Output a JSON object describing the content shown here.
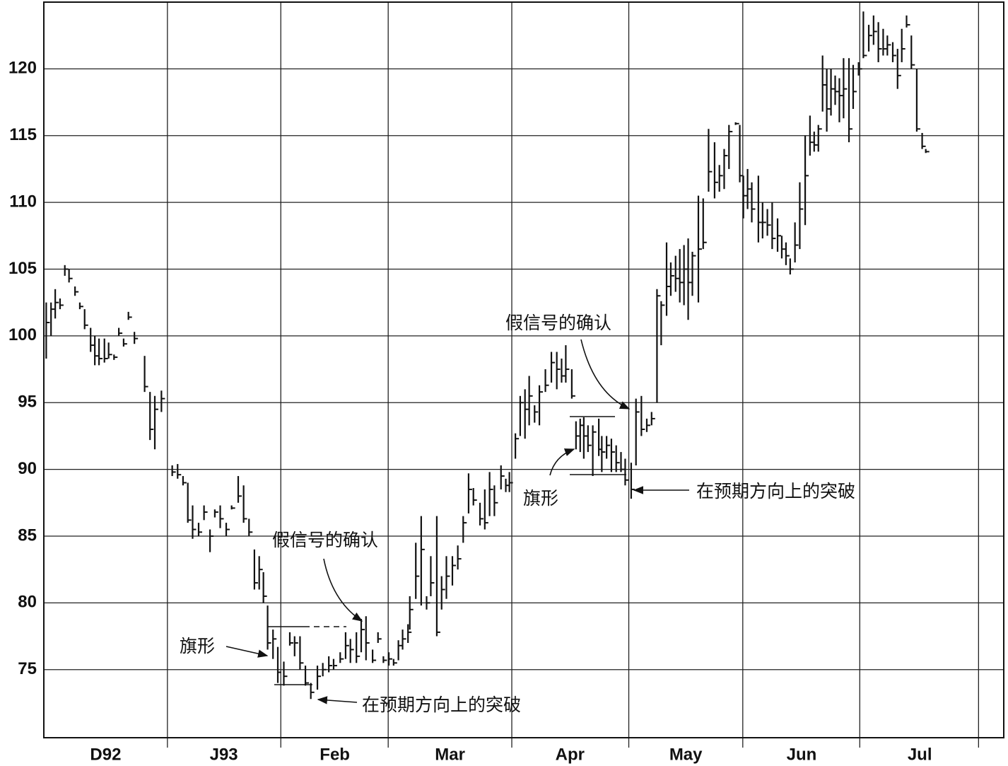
{
  "chart_data": {
    "type": "hlc",
    "series": [
      {
        "name": "price",
        "color": "#111111",
        "x": [
          0.4,
          1.2,
          1.9,
          2.7,
          3.5,
          4.2,
          5.2,
          6.0,
          6.8,
          7.8,
          8.5,
          9.2,
          10.1,
          10.8,
          11.7,
          12.5,
          13.3,
          14.1,
          15.1,
          16.8,
          17.7,
          18.5,
          19.6,
          21.4,
          22.3,
          23.2,
          24.0,
          24.8,
          25.8,
          26.7,
          27.7,
          28.5,
          29.4,
          30.4,
          31.3,
          32.4,
          33.3,
          34.2,
          35.1,
          35.9,
          36.6,
          37.3,
          38.2,
          39.0,
          40.0,
          41.0,
          41.8,
          42.7,
          43.6,
          44.5,
          45.6,
          46.5,
          47.5,
          48.3,
          49.4,
          50.3,
          51.1,
          52.1,
          52.9,
          53.7,
          54.8,
          55.7,
          56.6,
          57.5,
          58.3,
          59.1,
          59.8,
          60.7,
          61.0,
          62.0,
          62.9,
          63.8,
          64.5,
          65.5,
          66.3,
          67.1,
          68.1,
          69.0,
          69.9,
          70.8,
          71.6,
          72.7,
          73.5,
          74.3,
          75.1,
          76.2,
          77.0,
          77.6,
          78.6,
          79.4,
          80.2,
          80.9,
          81.8,
          82.6,
          83.6,
          84.6,
          85.5,
          86.3,
          87.0,
          88.0,
          88.7,
          89.4,
          90.0,
          90.7,
          91.5,
          92.5,
          93.0,
          93.8,
          94.6,
          95.4,
          96.2,
          96.9,
          97.9,
          98.7,
          99.6,
          100.5,
          101.3,
          102.2,
          102.9,
          103.8,
          104.5,
          105.3,
          106.0,
          106.7,
          107.4,
          108.1,
          109.1,
          109.9,
          110.8,
          111.8,
          112.6,
          113.4,
          114.2,
          115.3,
          116.0,
          116.6,
          117.3,
          118.0,
          119.1,
          119.8,
          120.6,
          121.4,
          122.3,
          123.0,
          123.7,
          124.4,
          125.2,
          126.0,
          126.9,
          127.7,
          128.4,
          129.1,
          129.8,
          130.5,
          131.2,
          131.9,
          132.6,
          133.3,
          134.2,
          134.9,
          135.8,
          136.6,
          137.5,
          138.3,
          139.1,
          139.9,
          140.6,
          141.5,
          142.3,
          143.0,
          143.8,
          144.6,
          145.5,
          146.4,
          147.0
        ],
        "high": [
          102.5,
          102.5,
          103.5,
          102.8,
          105.3,
          105,
          103.7,
          102.5,
          102,
          100.6,
          100,
          99.8,
          99.8,
          99.5,
          98.6,
          100.6,
          99.8,
          101.8,
          100.3,
          98.5,
          95.8,
          95.5,
          95.9,
          90.3,
          90.4,
          89.5,
          89,
          87.3,
          86,
          87.3,
          85.5,
          87,
          87.3,
          86,
          87.3,
          89.5,
          88.8,
          86.3,
          84,
          83.5,
          82.3,
          79.8,
          78,
          76.7,
          75.6,
          77.8,
          77.5,
          77.5,
          75.3,
          74,
          75.3,
          75.5,
          76,
          75.8,
          76.3,
          77.8,
          77.3,
          77.8,
          78.8,
          79,
          76.5,
          77.8,
          76,
          76.3,
          75.8,
          77.2,
          78,
          78.4,
          80.5,
          84.5,
          86.5,
          80.5,
          83.5,
          86.5,
          82,
          83.5,
          83.5,
          84.3,
          86.5,
          89.7,
          88.6,
          87.5,
          88.5,
          89.8,
          88.8,
          90.3,
          89.3,
          89.8,
          92.7,
          95.5,
          96,
          97,
          94.8,
          96.3,
          97.5,
          98.8,
          98.8,
          98.3,
          99.3,
          97.5,
          93.6,
          93.8,
          93.9,
          93.3,
          93.3,
          93.8,
          92.5,
          92.5,
          92.3,
          91.8,
          91.3,
          90.8,
          90.5,
          95.3,
          95.5,
          93.8,
          94.3,
          103.5,
          102.6,
          107,
          105.5,
          106,
          106.5,
          106.8,
          107.3,
          106.3,
          110.5,
          110.3,
          115.5,
          114.5,
          112.8,
          114,
          115.8,
          116,
          115.8,
          112,
          112.5,
          111.5,
          112,
          110,
          109.5,
          110,
          108.8,
          107.5,
          107,
          105.8,
          108.5,
          111.5,
          115,
          116.5,
          115.3,
          115.8,
          121,
          120,
          120,
          119.5,
          119.3,
          120.8,
          120.8,
          120.3,
          120.5,
          124.3,
          123.3,
          124,
          123.5,
          123,
          122.5,
          122,
          121.5,
          123,
          124,
          122.5,
          120,
          115.2,
          114
        ],
        "low": [
          98.3,
          100,
          101.3,
          102,
          104.5,
          104,
          103,
          102,
          100.5,
          98.8,
          97.8,
          97.8,
          98,
          98.3,
          98.2,
          100,
          99.2,
          101.2,
          99.4,
          95.8,
          92.2,
          91.5,
          94.3,
          89.5,
          89.3,
          88.8,
          86,
          84.8,
          85,
          86.2,
          83.8,
          86.4,
          85.6,
          85,
          87,
          87.5,
          86,
          85,
          81,
          81,
          80,
          76.5,
          75.8,
          74,
          73.8,
          76.8,
          76,
          75,
          73.8,
          72.8,
          73.5,
          74.5,
          74.8,
          75,
          75.5,
          75.8,
          75.5,
          75.5,
          76.3,
          75.7,
          75.5,
          77,
          75.5,
          75.3,
          75.3,
          75.7,
          76.5,
          77,
          78,
          80.3,
          79.8,
          79.5,
          80.5,
          77.5,
          79.5,
          80.3,
          81.3,
          82.5,
          84.5,
          86.7,
          87.3,
          85.8,
          85.5,
          86.5,
          86.5,
          88.5,
          88.3,
          88.3,
          90.8,
          92.5,
          92.3,
          93.3,
          93.5,
          93.3,
          95.8,
          96.5,
          96,
          96.5,
          96.5,
          95.3,
          91.5,
          91.3,
          90.8,
          91.3,
          89.5,
          91,
          89.8,
          90.8,
          89.8,
          89.8,
          89.8,
          88.8,
          87.8,
          90.3,
          92.5,
          92.8,
          93.3,
          95,
          99.3,
          101.5,
          103,
          103.3,
          102.5,
          102.3,
          101.2,
          103,
          102.5,
          106.5,
          110.8,
          110.3,
          110.8,
          111,
          112.5,
          115.8,
          111.5,
          108.8,
          109.5,
          108.5,
          107,
          107.3,
          107.5,
          106.5,
          106.3,
          105.8,
          105.3,
          104.6,
          105.5,
          106.5,
          108.3,
          113.5,
          113.8,
          113.8,
          116.8,
          115.3,
          116.5,
          117.3,
          116,
          116.3,
          114.5,
          117,
          119.5,
          120.8,
          121.3,
          121.8,
          120.5,
          121,
          121,
          120.5,
          118.5,
          120.5,
          123.1,
          120,
          115.3,
          114,
          113.7
        ],
        "close": [
          101,
          102,
          102.5,
          102.3,
          105,
          104.3,
          103.3,
          102.2,
          100.8,
          99.3,
          98.5,
          98.3,
          98.3,
          98.6,
          98.4,
          100.2,
          99.4,
          101.4,
          99.8,
          96.2,
          93,
          94.5,
          95.3,
          89.8,
          89.6,
          89,
          86.2,
          85.5,
          85.3,
          86.8,
          85,
          86.8,
          86.3,
          85.5,
          87.1,
          88,
          86.3,
          85.3,
          81.5,
          82.5,
          80.5,
          77,
          77.3,
          74.8,
          74.5,
          77,
          77,
          75.5,
          74,
          73.3,
          74.5,
          75,
          75.3,
          75.3,
          75.8,
          76.8,
          76.5,
          76,
          78,
          77,
          75.7,
          77.3,
          75.7,
          75.8,
          75.5,
          76.8,
          77.3,
          77.8,
          79.5,
          82,
          84,
          80,
          81.5,
          77.8,
          81,
          82,
          82.8,
          83.3,
          86,
          88.5,
          87.7,
          86.3,
          86,
          88.5,
          87.5,
          89.5,
          88.8,
          89,
          92.3,
          95,
          94.5,
          95.5,
          94.3,
          95.8,
          96.3,
          98,
          97.5,
          97,
          97.5,
          95.5,
          92.5,
          93.3,
          92.5,
          91.8,
          92.8,
          91.5,
          91.3,
          91.8,
          91.3,
          90.5,
          90,
          89.2,
          88.5,
          94.3,
          93,
          93.3,
          93.8,
          103,
          102.3,
          103.7,
          104.5,
          104.3,
          104,
          105,
          104,
          106,
          106.5,
          107,
          112.3,
          111.5,
          112,
          113.5,
          115.3,
          115.9,
          112,
          110.5,
          111,
          109.5,
          108.5,
          108.5,
          108.3,
          107.3,
          107.5,
          106.5,
          106,
          105,
          106.8,
          109.5,
          112,
          114.5,
          114.3,
          115.5,
          118.8,
          117,
          118.5,
          118.3,
          118,
          118.5,
          115.5,
          118.3,
          120,
          121,
          122.5,
          122.8,
          121.5,
          121.5,
          121.8,
          121,
          119.5,
          121.5,
          123.3,
          120.3,
          115.5,
          114.2,
          113.8
        ]
      }
    ],
    "xlim": [
      0,
      160
    ],
    "xticks": [
      {
        "value": 10.3,
        "label": "D92"
      },
      {
        "value": 30,
        "label": "J93"
      },
      {
        "value": 48.5,
        "label": "Feb"
      },
      {
        "value": 67.7,
        "label": "Mar"
      },
      {
        "value": 87.7,
        "label": "Apr"
      },
      {
        "value": 107,
        "label": "May"
      },
      {
        "value": 126.3,
        "label": "Jun"
      },
      {
        "value": 146,
        "label": "Jul"
      }
    ],
    "xgrid": [
      20.6,
      39.5,
      57.4,
      78,
      97.5,
      116.5,
      136,
      155.8
    ],
    "ylim": [
      69.9,
      125.0
    ],
    "yticks": [
      75,
      80,
      85,
      90,
      95,
      100,
      105,
      110,
      115,
      120
    ],
    "grid": true,
    "annotations": [
      "假信号的确认",
      "旗形",
      "在预期方向上的突破",
      "假信号的确认",
      "旗形",
      "在预期方向上的突破"
    ]
  }
}
